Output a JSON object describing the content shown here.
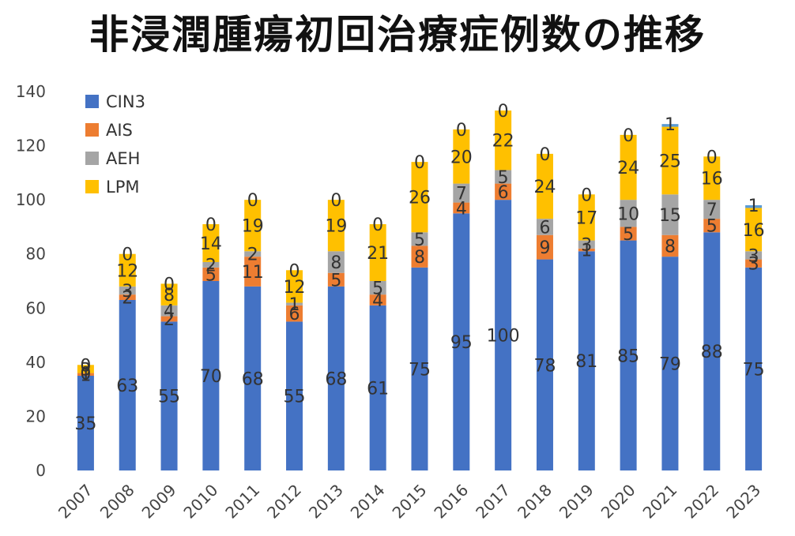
{
  "chart_data": {
    "type": "bar",
    "stacked": true,
    "title": "非浸潤腫瘍初回治療症例数の推移",
    "xlabel": "",
    "ylabel": "",
    "ylim": [
      0,
      140
    ],
    "yticks": [
      0,
      20,
      40,
      60,
      80,
      100,
      120,
      140
    ],
    "grid": false,
    "legend": "top-left",
    "categories": [
      "2007",
      "2008",
      "2009",
      "2010",
      "2011",
      "2012",
      "2013",
      "2014",
      "2015",
      "2016",
      "2017",
      "2018",
      "2019",
      "2020",
      "2021",
      "2022",
      "2023"
    ],
    "series": [
      {
        "name": "CIN3",
        "color": "#4472C4",
        "values": [
          35,
          63,
          55,
          70,
          68,
          55,
          68,
          61,
          75,
          95,
          100,
          78,
          81,
          85,
          79,
          88,
          75
        ]
      },
      {
        "name": "AIS",
        "color": "#ED7D31",
        "values": [
          1,
          2,
          2,
          5,
          11,
          6,
          5,
          4,
          8,
          4,
          6,
          9,
          1,
          5,
          8,
          5,
          3
        ]
      },
      {
        "name": "AEH",
        "color": "#A5A5A5",
        "values": [
          0,
          3,
          4,
          2,
          2,
          1,
          8,
          5,
          5,
          7,
          5,
          6,
          3,
          10,
          15,
          7,
          3
        ]
      },
      {
        "name": "LPM",
        "color": "#FFC000",
        "values": [
          3,
          12,
          8,
          14,
          19,
          12,
          19,
          21,
          26,
          20,
          22,
          24,
          17,
          24,
          25,
          16,
          16
        ]
      },
      {
        "name": "",
        "color": "#5B9BD5",
        "values": [
          0,
          0,
          0,
          0,
          0,
          0,
          0,
          0,
          0,
          0,
          0,
          0,
          0,
          0,
          1,
          0,
          1
        ]
      }
    ],
    "top_labels": [
      "0",
      "0",
      "0",
      "0",
      "0",
      "0",
      "0",
      "0",
      "0",
      "0",
      "0",
      "0",
      "0",
      "0",
      "1",
      "0",
      "1"
    ]
  }
}
